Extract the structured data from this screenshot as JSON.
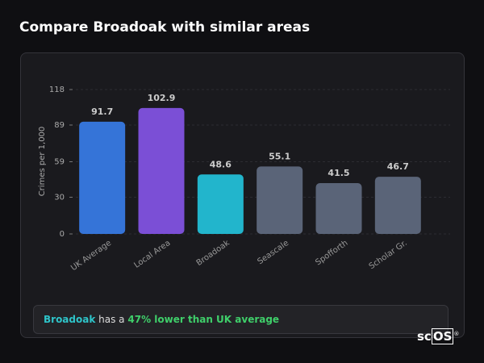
{
  "page": {
    "title": "Compare Broadoak with similar areas",
    "summary": {
      "area": "Broadoak",
      "text": "has a",
      "highlight": "47% lower than UK average"
    },
    "logo": {
      "prefix": "sc",
      "boxed": "OS",
      "mark": "®"
    }
  },
  "chart_data": {
    "type": "bar",
    "y_label": "Crimes per 1,000",
    "categories": [
      "UK Average",
      "Local Area",
      "Broadoak",
      "Seascale",
      "Spofforth",
      "Scholar Gr."
    ],
    "values": [
      91.7,
      102.9,
      48.6,
      55.1,
      41.5,
      46.7
    ],
    "colors": [
      "#3574d8",
      "#7b4fd6",
      "#22b5cc",
      "#5a6478",
      "#5a6478",
      "#5a6478"
    ],
    "ylim": [
      0,
      118
    ],
    "yticks": [
      0,
      30,
      59,
      89,
      118
    ],
    "grid": true
  }
}
